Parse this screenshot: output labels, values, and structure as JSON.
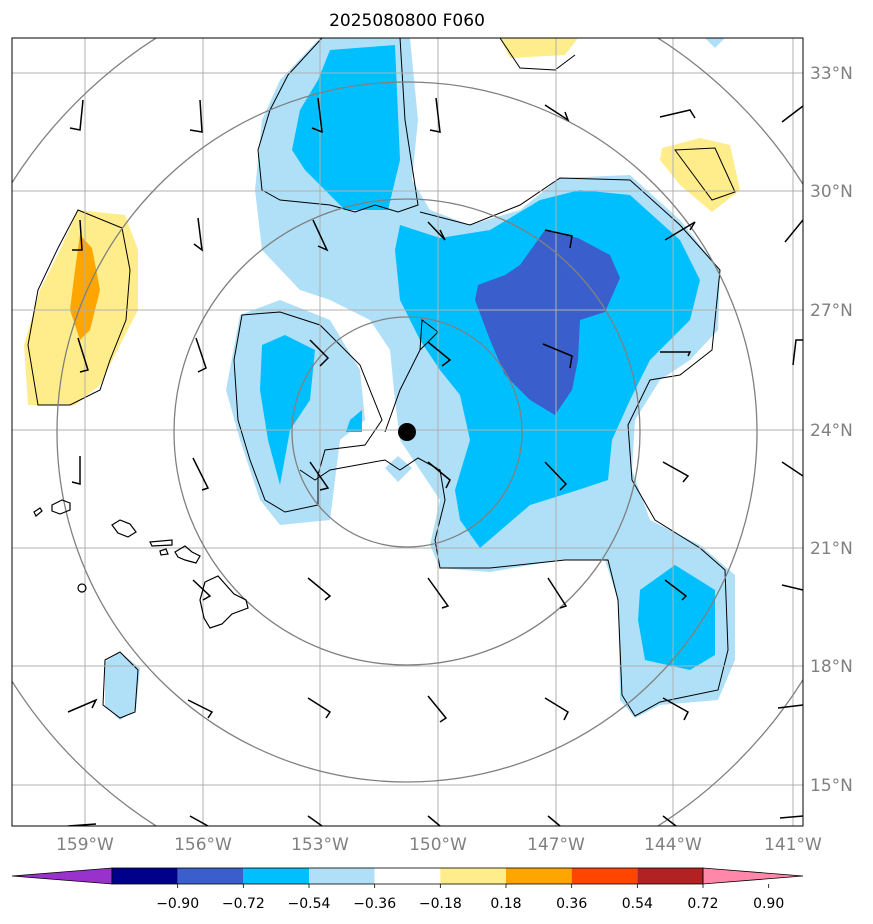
{
  "title": "2025080800 F060",
  "latitude_labels": [
    "33°N",
    "30°N",
    "27°N",
    "24°N",
    "21°N",
    "18°N",
    "15°N"
  ],
  "longitude_labels": [
    "159°W",
    "156°W",
    "153°W",
    "150°W",
    "147°W",
    "144°W",
    "141°W"
  ],
  "colorbar": {
    "tick_labels": [
      "−0.90",
      "−0.72",
      "−0.54",
      "−0.36",
      "−0.18",
      "0.18",
      "0.36",
      "0.54",
      "0.72",
      "0.90"
    ],
    "colors": [
      "#9932cc",
      "#00008b",
      "#3a5fcd",
      "#00bfff",
      "#b0e0f8",
      "#ffffff",
      "#ffec8b",
      "#ffa500",
      "#ff4500",
      "#b22222",
      "#ff88aa"
    ]
  },
  "colors": {
    "land_outline": "#000000",
    "gridline": "#b0b0b0",
    "range_ring": "#808080",
    "center_marker": "#000000"
  },
  "features": [
    "range-rings",
    "wind-barbs",
    "hawaiian-islands",
    "storm-center-marker"
  ]
}
